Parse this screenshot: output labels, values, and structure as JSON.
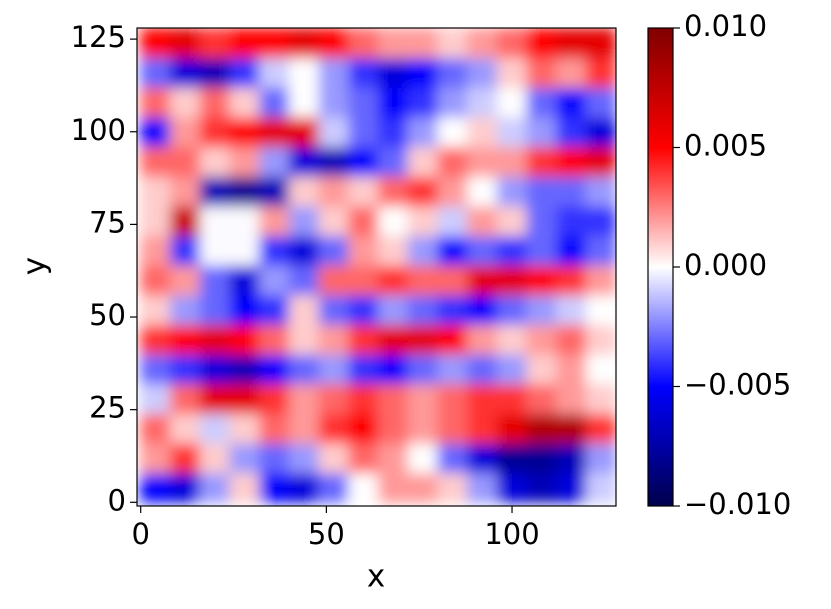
{
  "chart_data": {
    "type": "heatmap",
    "x_label": "x",
    "y_label": "y",
    "xlim": [
      -1,
      128
    ],
    "ylim": [
      -1,
      128
    ],
    "xticks": [
      0,
      50,
      100
    ],
    "yticks": [
      0,
      25,
      50,
      75,
      100,
      125
    ],
    "x": [
      4,
      12,
      20,
      28,
      36,
      44,
      52,
      60,
      68,
      76,
      84,
      92,
      100,
      108,
      116,
      124
    ],
    "y": [
      4,
      12,
      20,
      28,
      36,
      44,
      52,
      60,
      68,
      76,
      84,
      92,
      100,
      108,
      116,
      124
    ],
    "colormap": "seismic",
    "clim": [
      -0.01,
      0.01
    ],
    "cticks": [
      {
        "value": 0.01,
        "label": "0.010"
      },
      {
        "value": 0.005,
        "label": "0.005"
      },
      {
        "value": 0,
        "label": "0.000"
      },
      {
        "value": -0.005,
        "label": "−0.005"
      },
      {
        "value": -0.01,
        "label": "−0.010"
      }
    ],
    "z": [
      [
        -0.005,
        -0.006,
        -0.002,
        0.001,
        -0.005,
        -0.006,
        -0.003,
        0,
        0.002,
        0.002,
        0.001,
        -0.002,
        -0.006,
        -0.007,
        -0.006,
        -0.001
      ],
      [
        0.002,
        0.004,
        0.001,
        -0.002,
        -0.003,
        -0.002,
        0.001,
        0.003,
        0.002,
        0,
        -0.003,
        -0.006,
        -0.008,
        -0.008,
        -0.007,
        -0.002
      ],
      [
        0.003,
        0.001,
        -0.001,
        0.001,
        0.003,
        0.002,
        0.004,
        0.005,
        0.003,
        0.002,
        0.003,
        0.004,
        0.006,
        0.008,
        0.008,
        0.004
      ],
      [
        -0.001,
        0.003,
        0.006,
        0.006,
        0.004,
        0.002,
        0.003,
        0.004,
        0.003,
        0.002,
        0.003,
        0.004,
        0.004,
        0.003,
        0.002,
        0.001
      ],
      [
        -0.003,
        -0.004,
        -0.006,
        -0.007,
        -0.005,
        -0.003,
        -0.002,
        -0.004,
        -0.005,
        -0.003,
        -0.002,
        -0.003,
        -0.002,
        0.001,
        0.002,
        0
      ],
      [
        0.004,
        0.005,
        0.006,
        0.005,
        0.003,
        0.001,
        0.002,
        0.004,
        0.006,
        0.006,
        0.005,
        0.002,
        0.001,
        0.002,
        0.003,
        0.001
      ],
      [
        0.001,
        -0.002,
        -0.003,
        -0.005,
        -0.004,
        0.001,
        -0.003,
        -0.004,
        -0.002,
        -0.003,
        -0.004,
        -0.005,
        -0.003,
        -0.002,
        -0.001,
        0
      ],
      [
        0.003,
        0.002,
        -0.003,
        -0.006,
        -0.002,
        -0.003,
        0.003,
        0.003,
        0.004,
        0.003,
        0.003,
        0.006,
        0.006,
        0.005,
        0.004,
        0.002
      ],
      [
        0.002,
        -0.004,
        null,
        null,
        -0.004,
        -0.006,
        -0.003,
        0.002,
        0.001,
        -0.002,
        -0.005,
        -0.003,
        -0.004,
        -0.003,
        -0.005,
        -0.003
      ],
      [
        0.001,
        0.007,
        null,
        null,
        0.002,
        -0.002,
        0.001,
        0.003,
        0,
        0.001,
        -0.001,
        0.002,
        0.001,
        -0.003,
        -0.004,
        -0.004
      ],
      [
        0.001,
        0.002,
        -0.007,
        -0.008,
        -0.007,
        0.001,
        0.002,
        0.001,
        0.003,
        0.004,
        0.002,
        0,
        -0.002,
        -0.003,
        -0.003,
        -0.002
      ],
      [
        0.003,
        0.003,
        0.001,
        0.002,
        -0.002,
        -0.006,
        -0.007,
        -0.005,
        -0.003,
        0.001,
        0.003,
        0.002,
        0.002,
        0.004,
        0.005,
        0.006
      ],
      [
        -0.005,
        0.002,
        0.004,
        0.005,
        0.006,
        0.006,
        -0.001,
        -0.003,
        -0.004,
        -0.002,
        0,
        0.001,
        -0.001,
        -0.002,
        -0.004,
        -0.006
      ],
      [
        0.003,
        0.001,
        0.003,
        0.001,
        -0.003,
        0,
        -0.002,
        -0.003,
        -0.005,
        -0.004,
        -0.002,
        -0.001,
        0,
        -0.003,
        -0.005,
        -0.003
      ],
      [
        -0.003,
        -0.006,
        -0.007,
        -0.004,
        -0.001,
        0,
        -0.002,
        -0.004,
        -0.006,
        -0.005,
        -0.003,
        -0.002,
        0.001,
        0.003,
        0.002,
        0.004
      ],
      [
        0.005,
        0.006,
        0.004,
        0.005,
        0.005,
        0.006,
        0.005,
        0.003,
        0.002,
        0.002,
        0.001,
        0.002,
        0.003,
        0.005,
        0.006,
        0.006
      ]
    ]
  }
}
